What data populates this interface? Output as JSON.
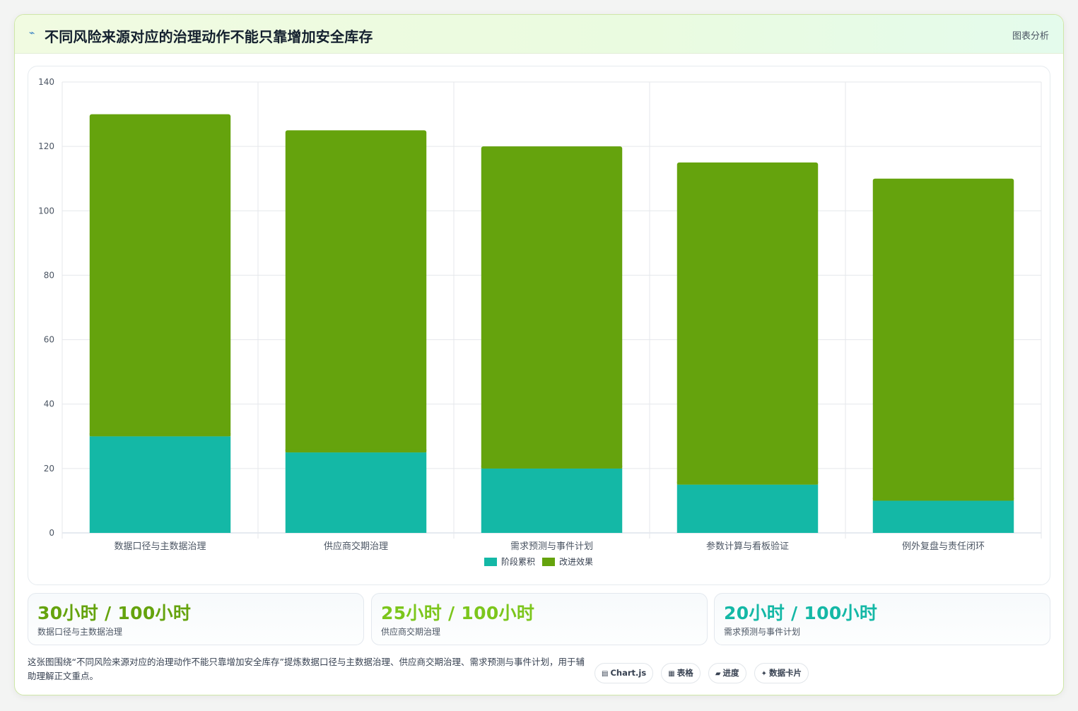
{
  "header": {
    "icon": "trend-icon",
    "title": "不同风险来源对应的治理动作不能只靠增加安全库存",
    "tag": "图表分析"
  },
  "colors": {
    "stage": "#14b8a6",
    "improve": "#65a30d",
    "kpi_1": "#65a30d",
    "kpi_2": "#7cc61c",
    "kpi_3": "#14b8a6"
  },
  "chart_data": {
    "type": "bar",
    "stacked": true,
    "categories": [
      "数据口径与主数据治理",
      "供应商交期治理",
      "需求预测与事件计划",
      "参数计算与看板验证",
      "例外复盘与责任闭环"
    ],
    "series": [
      {
        "name": "阶段累积",
        "values": [
          30,
          25,
          20,
          15,
          10
        ]
      },
      {
        "name": "改进效果",
        "values": [
          100,
          100,
          100,
          100,
          100
        ]
      }
    ],
    "ylim": [
      0,
      140
    ],
    "yticks": [
      0,
      20,
      40,
      60,
      80,
      100,
      120,
      140
    ],
    "grid": true,
    "legend": "bottom"
  },
  "kpis": [
    {
      "value": "30小时 / 100小时",
      "label": "数据口径与主数据治理"
    },
    {
      "value": "25小时 / 100小时",
      "label": "供应商交期治理"
    },
    {
      "value": "20小时 / 100小时",
      "label": "需求预测与事件计划"
    }
  ],
  "note": "这张图围绕“不同风险来源对应的治理动作不能只靠增加安全库存”提炼数据口径与主数据治理、供应商交期治理、需求预测与事件计划，用于辅助理解正文重点。",
  "pills": [
    {
      "icon": "chart-icon",
      "glyph": "▤",
      "label": "Chart.js"
    },
    {
      "icon": "table-icon",
      "glyph": "▦",
      "label": "表格"
    },
    {
      "icon": "progress-icon",
      "glyph": "▰",
      "label": "进度"
    },
    {
      "icon": "card-icon",
      "glyph": "✦",
      "label": "数据卡片"
    }
  ]
}
